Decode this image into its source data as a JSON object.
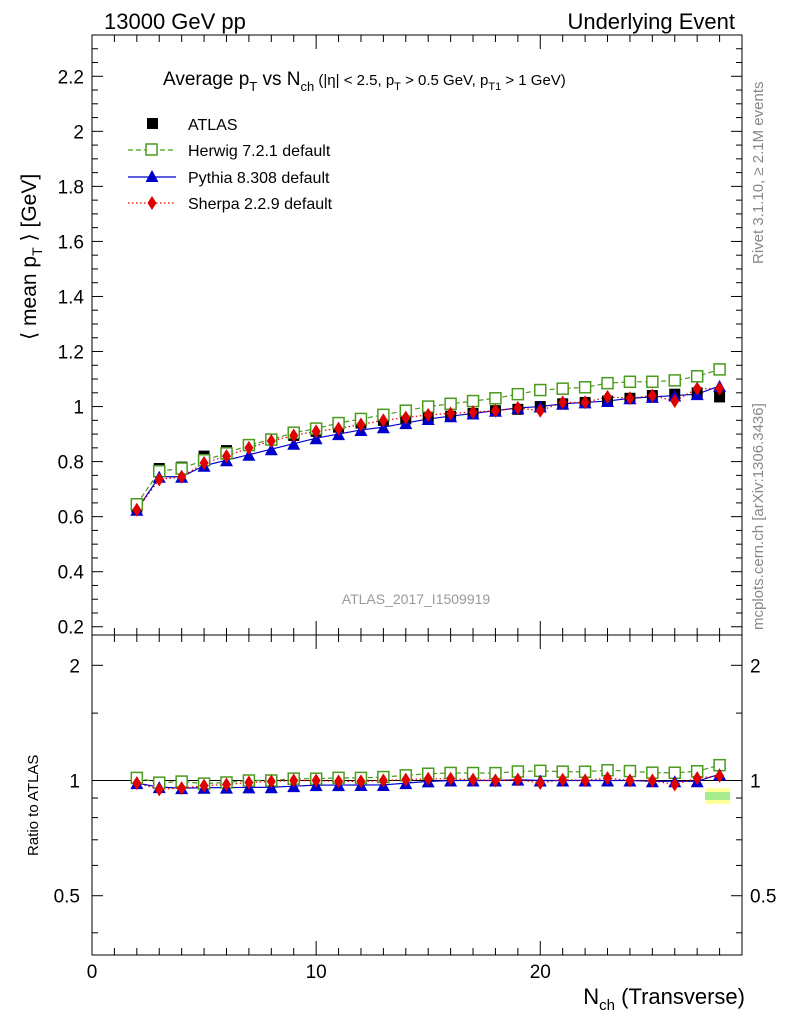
{
  "header": {
    "left": "13000 GeV pp",
    "right": "Underlying Event"
  },
  "side_labels": {
    "rivet": "Rivet 3.1.10, ≥ 2.1M events",
    "mcplots": "mcplots.cern.ch [arXiv:1306.3436]"
  },
  "chart_data": {
    "type": "scatter",
    "title_parts": {
      "a": "Average p",
      "a_sub": "T",
      "b": " vs N",
      "b_sub": "ch",
      "c": " (|η| < 2.5, p",
      "c_sub": "T",
      "d": " > 0.5 GeV, p",
      "d_sub": "T1",
      "e": " > 1 GeV)"
    },
    "ylabel": "⟨ mean p",
    "ylabel_sub": "T",
    "ylabel_end": " ⟩ [GeV]",
    "xlabel": "N",
    "xlabel_sub": "ch",
    "xlabel_end": " (Transverse)",
    "ratio_ylabel": "Ratio to ATLAS",
    "watermark": "ATLAS_2017_I1509919",
    "xlim": [
      0,
      29
    ],
    "ylim": [
      0.17,
      2.35
    ],
    "ratio_ylim": [
      0.35,
      2.4
    ],
    "xticks": [
      0,
      10,
      20
    ],
    "xtick_labels": [
      "0",
      "10",
      "20"
    ],
    "yticks": [
      0.2,
      0.4,
      0.6,
      0.8,
      1,
      1.2,
      1.4,
      1.6,
      1.8,
      2,
      2.2
    ],
    "ytick_labels": [
      "0.2",
      "0.4",
      "0.6",
      "0.8",
      "1",
      "1.2",
      "1.4",
      "1.6",
      "1.8",
      "2",
      "2.2"
    ],
    "ratio_yticks": [
      0.5,
      1,
      2
    ],
    "ratio_ytick_labels": [
      "0.5",
      "1",
      "2"
    ],
    "legend_position": "top-left",
    "x": [
      2,
      3,
      4,
      5,
      6,
      7,
      8,
      9,
      10,
      11,
      12,
      13,
      14,
      15,
      16,
      17,
      18,
      19,
      20,
      21,
      22,
      23,
      24,
      25,
      26,
      27,
      28
    ],
    "series": [
      {
        "name": "ATLAS",
        "marker": "filled-square",
        "color": "#000000",
        "values": [
          0.635,
          0.775,
          0.78,
          0.82,
          0.84,
          0.86,
          0.88,
          0.895,
          0.91,
          0.925,
          0.94,
          0.95,
          0.955,
          0.96,
          0.965,
          0.975,
          0.985,
          0.99,
          1.0,
          1.01,
          1.015,
          1.02,
          1.03,
          1.04,
          1.045,
          1.05,
          1.035
        ]
      },
      {
        "name": "Herwig 7.2.1 default",
        "marker": "open-square",
        "color": "#4a9a1e",
        "values": [
          0.645,
          0.765,
          0.775,
          0.805,
          0.83,
          0.86,
          0.88,
          0.905,
          0.92,
          0.94,
          0.955,
          0.97,
          0.985,
          1.0,
          1.01,
          1.02,
          1.03,
          1.045,
          1.06,
          1.065,
          1.07,
          1.085,
          1.09,
          1.09,
          1.095,
          1.11,
          1.135
        ]
      },
      {
        "name": "Pythia 8.308 default",
        "marker": "filled-triangle",
        "color": "#0000cc",
        "values": [
          0.625,
          0.745,
          0.745,
          0.785,
          0.805,
          0.825,
          0.845,
          0.865,
          0.885,
          0.9,
          0.915,
          0.925,
          0.94,
          0.955,
          0.965,
          0.975,
          0.985,
          0.995,
          1.0,
          1.01,
          1.015,
          1.02,
          1.03,
          1.035,
          1.04,
          1.045,
          1.075
        ]
      },
      {
        "name": "Sherpa 2.2.9 default",
        "marker": "filled-diamond",
        "color": "#e00000",
        "values": [
          0.625,
          0.735,
          0.745,
          0.795,
          0.82,
          0.85,
          0.875,
          0.895,
          0.91,
          0.92,
          0.935,
          0.95,
          0.96,
          0.97,
          0.975,
          0.98,
          0.985,
          0.995,
          0.985,
          1.015,
          1.015,
          1.035,
          1.03,
          1.04,
          1.02,
          1.065,
          1.065
        ]
      }
    ]
  }
}
